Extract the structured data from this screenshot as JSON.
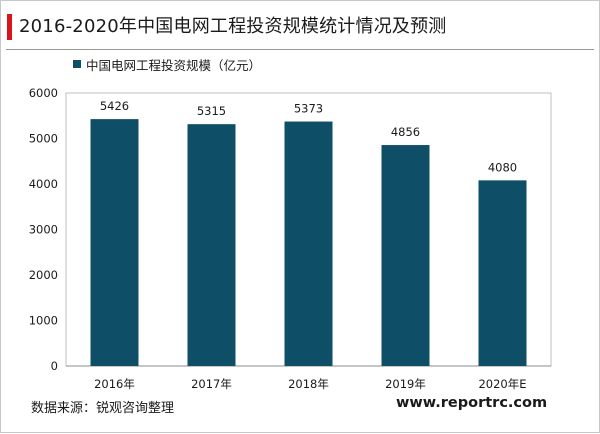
{
  "header": {
    "title": "2016-2020年中国电网工程投资规模统计情况及预测",
    "accent_color": "#d9141b"
  },
  "legend": {
    "label": "中国电网工程投资规模（亿元）"
  },
  "chart_data": {
    "type": "bar",
    "categories": [
      "2016年",
      "2017年",
      "2018年",
      "2019年",
      "2020年E"
    ],
    "series": [
      {
        "name": "中国电网工程投资规模（亿元）",
        "values": [
          5426,
          5315,
          5373,
          4856,
          4080
        ],
        "color": "#0e4e67"
      }
    ],
    "title": "2016-2020年中国电网工程投资规模统计情况及预测",
    "xlabel": "",
    "ylabel": "",
    "ylim": [
      0,
      6000
    ],
    "yticks": [
      0,
      1000,
      2000,
      3000,
      4000,
      5000,
      6000
    ],
    "grid": false,
    "legend_position": "top-left",
    "data_labels": true
  },
  "footer": {
    "source": "数据来源：锐观咨询整理",
    "website": "www.reportrc.com"
  }
}
